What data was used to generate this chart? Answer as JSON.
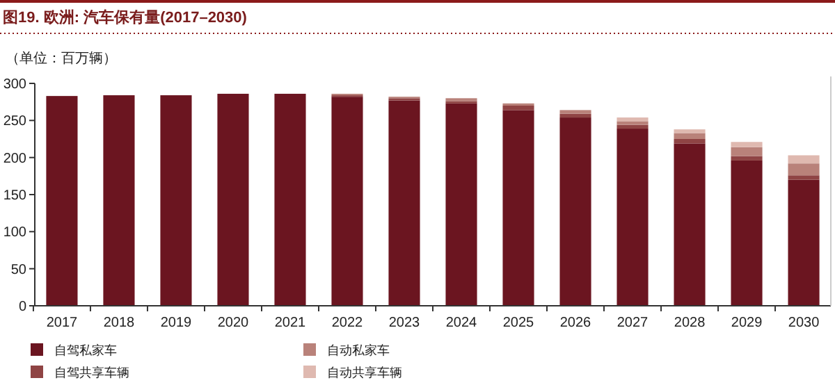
{
  "chart_data": {
    "type": "bar",
    "title": "图19. 欧洲: 汽车保有量(2017–2030)",
    "ylabel": "（单位：百万辆）",
    "stacked": true,
    "legend": "bottom",
    "categories": [
      "2017",
      "2018",
      "2019",
      "2020",
      "2021",
      "2022",
      "2023",
      "2024",
      "2025",
      "2026",
      "2027",
      "2028",
      "2029",
      "2030"
    ],
    "series": [
      {
        "name": "自驾私家车",
        "color": "#6b1520",
        "values": [
          283,
          284,
          284,
          286,
          286,
          282,
          277,
          273,
          264,
          254,
          239,
          219,
          196,
          170
        ]
      },
      {
        "name": "自驾共享车辆",
        "color": "#8f4444",
        "values": [
          0,
          0,
          0,
          0,
          0,
          2,
          3,
          3,
          6,
          5,
          5,
          6,
          6,
          6
        ]
      },
      {
        "name": "自动私家车",
        "color": "#b9827a",
        "values": [
          0,
          0,
          0,
          0,
          0,
          2,
          2,
          4,
          3,
          5,
          5,
          8,
          12,
          16
        ]
      },
      {
        "name": "自动共享车辆",
        "color": "#dfb9b0",
        "values": [
          0,
          0,
          0,
          0,
          0,
          0,
          null,
          null,
          null,
          null,
          5,
          5,
          7,
          11
        ]
      }
    ],
    "ylim": [
      0,
      300
    ],
    "yticks": [
      0,
      50,
      100,
      150,
      200,
      250,
      300
    ]
  }
}
